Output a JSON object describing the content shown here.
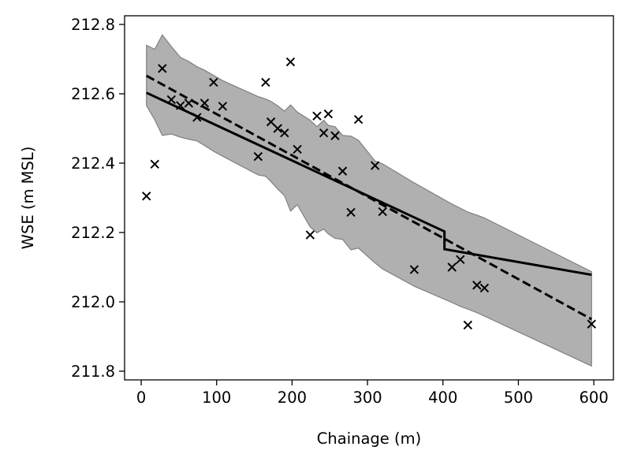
{
  "chart_data": {
    "type": "scatter",
    "xlabel": "Chainage (m)",
    "ylabel": "WSE (m MSL)",
    "xlim": [
      -22,
      626
    ],
    "ylim": [
      211.775,
      212.825
    ],
    "xticks": [
      0,
      100,
      200,
      300,
      400,
      500,
      600
    ],
    "xtick_labels": [
      "0",
      "100",
      "200",
      "300",
      "400",
      "500",
      "600"
    ],
    "yticks": [
      211.8,
      212.0,
      212.2,
      212.4,
      212.6,
      212.8
    ],
    "ytick_labels": [
      "211.8",
      "212.0",
      "212.2",
      "212.4",
      "212.6",
      "212.8"
    ],
    "grid": false,
    "colors": {
      "band": "#b0b0b0",
      "band_edge": "#808080",
      "line": "#000000",
      "marker": "#000000"
    },
    "observations": {
      "marker": "x",
      "points": [
        [
          7,
          212.305
        ],
        [
          18,
          212.397
        ],
        [
          28,
          212.673
        ],
        [
          40,
          212.583
        ],
        [
          52,
          212.566
        ],
        [
          63,
          212.573
        ],
        [
          74,
          212.532
        ],
        [
          84,
          212.573
        ],
        [
          96,
          212.633
        ],
        [
          108,
          212.564
        ],
        [
          155,
          212.419
        ],
        [
          165,
          212.633
        ],
        [
          172,
          212.519
        ],
        [
          181,
          212.5
        ],
        [
          190,
          212.487
        ],
        [
          198,
          212.692
        ],
        [
          207,
          212.44
        ],
        [
          224,
          212.193
        ],
        [
          233,
          212.536
        ],
        [
          242,
          212.487
        ],
        [
          248,
          212.542
        ],
        [
          257,
          212.479
        ],
        [
          267,
          212.377
        ],
        [
          278,
          212.258
        ],
        [
          288,
          212.526
        ],
        [
          310,
          212.393
        ],
        [
          320,
          212.26
        ],
        [
          362,
          212.093
        ],
        [
          412,
          212.1
        ],
        [
          423,
          212.122
        ],
        [
          433,
          211.933
        ],
        [
          445,
          212.048
        ],
        [
          455,
          212.04
        ],
        [
          597,
          211.936
        ]
      ]
    },
    "solid_line": {
      "style": "solid",
      "points": [
        [
          7,
          212.603
        ],
        [
          402,
          212.203
        ],
        [
          402,
          212.152
        ],
        [
          597,
          212.078
        ]
      ]
    },
    "dashed_line": {
      "style": "dashed",
      "points": [
        [
          7,
          212.652
        ],
        [
          597,
          211.95
        ]
      ]
    },
    "band": {
      "upper": [
        [
          7,
          212.74
        ],
        [
          18,
          212.728
        ],
        [
          28,
          212.77
        ],
        [
          40,
          212.736
        ],
        [
          52,
          212.705
        ],
        [
          63,
          212.693
        ],
        [
          74,
          212.678
        ],
        [
          84,
          212.668
        ],
        [
          96,
          212.653
        ],
        [
          108,
          212.638
        ],
        [
          155,
          212.592
        ],
        [
          165,
          212.585
        ],
        [
          172,
          212.578
        ],
        [
          181,
          212.565
        ],
        [
          190,
          212.55
        ],
        [
          198,
          212.568
        ],
        [
          207,
          212.547
        ],
        [
          224,
          212.524
        ],
        [
          233,
          212.505
        ],
        [
          242,
          212.524
        ],
        [
          248,
          212.509
        ],
        [
          257,
          212.505
        ],
        [
          267,
          212.48
        ],
        [
          278,
          212.478
        ],
        [
          288,
          212.466
        ],
        [
          310,
          212.406
        ],
        [
          320,
          212.398
        ],
        [
          362,
          212.343
        ],
        [
          412,
          212.282
        ],
        [
          423,
          212.27
        ],
        [
          433,
          212.259
        ],
        [
          445,
          212.25
        ],
        [
          455,
          212.242
        ],
        [
          597,
          212.087
        ]
      ],
      "lower": [
        [
          597,
          211.815
        ],
        [
          455,
          211.959
        ],
        [
          445,
          211.969
        ],
        [
          433,
          211.979
        ],
        [
          423,
          211.987
        ],
        [
          412,
          211.998
        ],
        [
          362,
          212.045
        ],
        [
          320,
          212.095
        ],
        [
          310,
          212.112
        ],
        [
          288,
          212.155
        ],
        [
          278,
          212.15
        ],
        [
          267,
          212.18
        ],
        [
          257,
          212.183
        ],
        [
          248,
          212.196
        ],
        [
          242,
          212.21
        ],
        [
          233,
          212.199
        ],
        [
          224,
          212.216
        ],
        [
          207,
          212.28
        ],
        [
          198,
          212.262
        ],
        [
          190,
          212.306
        ],
        [
          181,
          212.325
        ],
        [
          172,
          212.347
        ],
        [
          165,
          212.362
        ],
        [
          155,
          212.366
        ],
        [
          108,
          212.42
        ],
        [
          96,
          212.434
        ],
        [
          84,
          212.451
        ],
        [
          74,
          212.464
        ],
        [
          63,
          212.469
        ],
        [
          52,
          212.475
        ],
        [
          40,
          212.484
        ],
        [
          28,
          212.48
        ],
        [
          18,
          212.525
        ],
        [
          7,
          212.566
        ]
      ]
    }
  }
}
